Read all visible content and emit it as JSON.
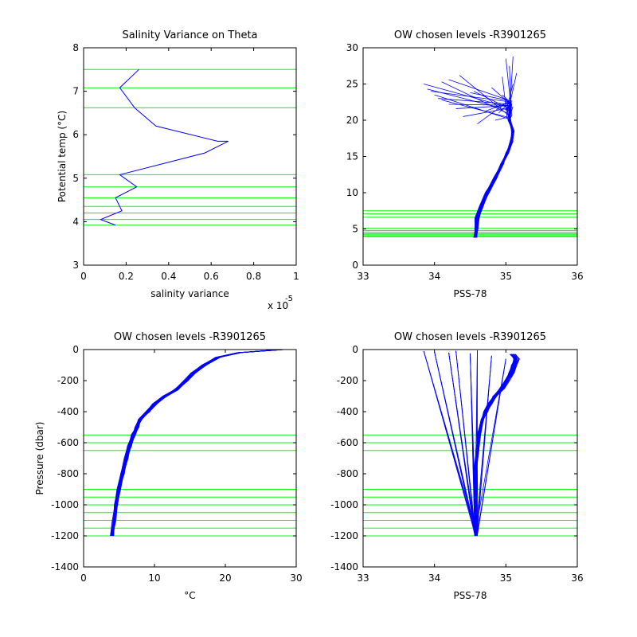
{
  "colors": {
    "profile": "#0000ff",
    "chosen_level": "#00ff00",
    "axis": "#000000"
  },
  "chart_data": [
    {
      "type": "line",
      "title": "Salinity Variance on Theta",
      "xlabel": "salinity variance",
      "ylabel": "Potential temp (°C)",
      "x_exponent_label": "x 10",
      "x_exponent_power": "-5",
      "xlim": [
        0,
        1
      ],
      "ylim": [
        3,
        8
      ],
      "xticks": [
        "0",
        "0.2",
        "0.4",
        "0.6",
        "0.8",
        "1"
      ],
      "yticks": [
        "3",
        "4",
        "5",
        "6",
        "7",
        "8"
      ],
      "series": [
        {
          "x": [
            0.26,
            0.17,
            0.24,
            0.34,
            0.63,
            0.68,
            0.57,
            0.17,
            0.25,
            0.15,
            0.18,
            0.08,
            0.15
          ],
          "y": [
            7.5,
            7.08,
            6.62,
            6.2,
            5.85,
            5.85,
            5.58,
            5.08,
            4.8,
            4.55,
            4.25,
            4.05,
            3.92
          ]
        }
      ],
      "hlines": [
        7.5,
        7.08,
        6.62,
        5.08,
        4.8,
        4.55,
        4.35,
        4.2,
        4.05,
        3.92
      ]
    },
    {
      "type": "line",
      "title": "OW chosen levels -R3901265",
      "xlabel": "PSS-78",
      "ylabel": "",
      "xlim": [
        33,
        36
      ],
      "ylim": [
        0,
        30
      ],
      "xticks": [
        "33",
        "34",
        "35",
        "36"
      ],
      "yticks": [
        "0",
        "5",
        "10",
        "15",
        "20",
        "25",
        "30"
      ],
      "base_profile": {
        "x": [
          34.57,
          34.58,
          34.6,
          34.65,
          34.74,
          34.85,
          34.95,
          35.02,
          35.08,
          35.1,
          35.05
        ],
        "y": [
          3.8,
          5.0,
          6.5,
          8.0,
          10.0,
          12.0,
          14.0,
          15.5,
          17.0,
          18.5,
          20.0
        ]
      },
      "surface_tips": [
        [
          33.85,
          25.0
        ],
        [
          33.9,
          24.3
        ],
        [
          33.95,
          24.0
        ],
        [
          34.0,
          23.5
        ],
        [
          34.05,
          23.0
        ],
        [
          34.1,
          22.8
        ],
        [
          34.2,
          22.2
        ],
        [
          34.3,
          21.6
        ],
        [
          34.35,
          26.2
        ],
        [
          34.5,
          23.8
        ],
        [
          34.55,
          24.0
        ],
        [
          34.1,
          25.3
        ],
        [
          34.2,
          25.6
        ],
        [
          34.7,
          21.2
        ],
        [
          34.9,
          21.0
        ],
        [
          35.0,
          28.5
        ],
        [
          35.05,
          27.5
        ],
        [
          35.1,
          28.8
        ],
        [
          34.95,
          26.0
        ],
        [
          35.15,
          26.5
        ],
        [
          34.8,
          24.5
        ],
        [
          35.0,
          22.8
        ],
        [
          34.6,
          19.5
        ],
        [
          34.4,
          20.5
        ],
        [
          35.1,
          25.0
        ],
        [
          34.95,
          23.5
        ],
        [
          35.05,
          21.0
        ],
        [
          34.85,
          20.0
        ]
      ],
      "hlines": [
        7.5,
        7.08,
        6.62,
        5.08,
        4.8,
        4.55,
        4.35,
        4.2,
        4.05,
        3.92
      ]
    },
    {
      "type": "line",
      "title": "OW chosen levels -R3901265",
      "xlabel": "°C",
      "ylabel": "Pressure (dbar)",
      "xlim": [
        0,
        30
      ],
      "ylim": [
        -1400,
        0
      ],
      "xticks": [
        "0",
        "10",
        "20",
        "30"
      ],
      "yticks": [
        "-1400",
        "-1200",
        "-1000",
        "-800",
        "-600",
        "-400",
        "-200",
        "0"
      ],
      "base_profile": {
        "x": [
          28.0,
          22.0,
          19.0,
          17.0,
          15.5,
          14.5,
          13.0,
          11.5,
          10.0,
          9.0,
          8.0,
          7.5,
          7.0,
          6.5,
          6.0,
          5.5,
          5.0,
          4.6,
          4.3,
          4.0
        ],
        "y": [
          0,
          -20,
          -50,
          -100,
          -150,
          -200,
          -260,
          -300,
          -350,
          -400,
          -450,
          -500,
          -550,
          -620,
          -700,
          -800,
          -900,
          -1000,
          -1100,
          -1200
        ]
      },
      "hlines": [
        -550,
        -600,
        -650,
        -900,
        -950,
        -1000,
        -1050,
        -1100,
        -1150,
        -1200
      ]
    },
    {
      "type": "line",
      "title": "OW chosen levels -R3901265",
      "xlabel": "PSS-78",
      "ylabel": "",
      "xlim": [
        33,
        36
      ],
      "ylim": [
        -1400,
        0
      ],
      "xticks": [
        "33",
        "34",
        "35",
        "36"
      ],
      "yticks": [
        "-1400",
        "-1200",
        "-1000",
        "-800",
        "-600",
        "-400",
        "-200",
        "0"
      ],
      "base_profile": {
        "x": [
          35.1,
          35.15,
          35.12,
          35.08,
          35.02,
          34.95,
          34.85,
          34.78,
          34.72,
          34.67,
          34.62,
          34.6,
          34.58,
          34.58,
          34.58,
          34.58
        ],
        "y": [
          -30,
          -60,
          -100,
          -150,
          -200,
          -250,
          -300,
          -350,
          -400,
          -450,
          -550,
          -650,
          -750,
          -900,
          -1050,
          -1200
        ]
      },
      "surface_tips": [
        [
          33.85,
          -10
        ],
        [
          34.0,
          -15
        ],
        [
          34.2,
          -20
        ],
        [
          34.5,
          -25
        ],
        [
          34.8,
          -40
        ],
        [
          35.0,
          -60
        ],
        [
          34.6,
          -5
        ],
        [
          34.3,
          -8
        ]
      ],
      "hlines": [
        -550,
        -600,
        -650,
        -900,
        -950,
        -1000,
        -1050,
        -1100,
        -1150,
        -1200
      ]
    }
  ]
}
